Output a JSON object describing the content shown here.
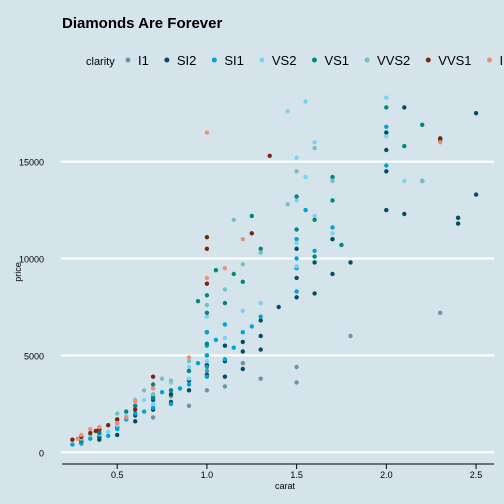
{
  "colors": {
    "background": "#d5e4eb",
    "grid": "#ffffff",
    "text": "#000000",
    "series": {
      "I1": "#6794a7",
      "SI2": "#014d64",
      "SI1": "#01a2d9",
      "VS2": "#7ad2f6",
      "VS1": "#00887d",
      "VVS2": "#76c0c1",
      "VVS1": "#7c260b",
      "IF": "#ee8f71"
    }
  },
  "chart_data": {
    "type": "scatter",
    "title": "Diamonds Are Forever",
    "xlabel": "carat",
    "ylabel": "price",
    "legend_title": "clarity",
    "legend_position": "top",
    "xlim": [
      0.17,
      2.6
    ],
    "ylim": [
      -500,
      18800
    ],
    "x_ticks": [
      0.5,
      1.0,
      1.5,
      2.0,
      2.5
    ],
    "x_tick_labels": [
      "0.5",
      "1.0",
      "1.5",
      "2.0",
      "2.5"
    ],
    "y_ticks": [
      0,
      5000,
      10000,
      15000
    ],
    "y_tick_labels": [
      "0",
      "5000",
      "10000",
      "15000"
    ],
    "grid": "horizontal",
    "series": [
      {
        "name": "I1",
        "points": [
          [
            0.7,
            1800
          ],
          [
            1.0,
            3200
          ],
          [
            1.0,
            4200
          ],
          [
            1.2,
            4600
          ],
          [
            1.5,
            3600
          ],
          [
            1.8,
            6000
          ],
          [
            2.3,
            7200
          ],
          [
            0.9,
            2400
          ],
          [
            1.1,
            3400
          ],
          [
            1.5,
            4400
          ],
          [
            0.8,
            2900
          ],
          [
            1.3,
            3800
          ]
        ]
      },
      {
        "name": "SI2",
        "points": [
          [
            0.3,
            500
          ],
          [
            0.4,
            800
          ],
          [
            0.5,
            1300
          ],
          [
            0.6,
            1600
          ],
          [
            0.7,
            2200
          ],
          [
            0.7,
            2700
          ],
          [
            0.8,
            3000
          ],
          [
            0.9,
            3200
          ],
          [
            0.9,
            3700
          ],
          [
            1.0,
            4000
          ],
          [
            1.0,
            4500
          ],
          [
            1.0,
            5000
          ],
          [
            1.1,
            3900
          ],
          [
            1.1,
            4700
          ],
          [
            1.2,
            5200
          ],
          [
            1.2,
            5700
          ],
          [
            1.3,
            6000
          ],
          [
            1.3,
            6800
          ],
          [
            1.5,
            8000
          ],
          [
            1.5,
            9000
          ],
          [
            1.5,
            10500
          ],
          [
            1.6,
            9800
          ],
          [
            1.7,
            11000
          ],
          [
            1.8,
            9800
          ],
          [
            2.0,
            12500
          ],
          [
            2.0,
            14500
          ],
          [
            2.0,
            16500
          ],
          [
            2.1,
            17800
          ],
          [
            2.2,
            14000
          ],
          [
            2.3,
            16200
          ],
          [
            2.4,
            11800
          ],
          [
            2.5,
            13300
          ],
          [
            2.5,
            17500
          ],
          [
            0.6,
            1900
          ],
          [
            0.8,
            2600
          ],
          [
            0.5,
            900
          ],
          [
            1.0,
            6200
          ],
          [
            1.2,
            4300
          ],
          [
            1.4,
            7500
          ],
          [
            1.6,
            8200
          ],
          [
            2.1,
            12300
          ],
          [
            2.4,
            12100
          ],
          [
            2.3,
            16100
          ],
          [
            0.4,
            650
          ],
          [
            1.1,
            5500
          ],
          [
            1.3,
            5300
          ],
          [
            1.7,
            9200
          ],
          [
            2.0,
            15600
          ]
        ]
      },
      {
        "name": "SI1",
        "points": [
          [
            0.3,
            600
          ],
          [
            0.35,
            700
          ],
          [
            0.4,
            900
          ],
          [
            0.4,
            1100
          ],
          [
            0.5,
            1200
          ],
          [
            0.5,
            1500
          ],
          [
            0.55,
            1700
          ],
          [
            0.6,
            2000
          ],
          [
            0.7,
            2300
          ],
          [
            0.7,
            2900
          ],
          [
            0.75,
            3100
          ],
          [
            0.8,
            2500
          ],
          [
            0.9,
            3500
          ],
          [
            0.9,
            4200
          ],
          [
            1.0,
            4400
          ],
          [
            1.0,
            5000
          ],
          [
            1.0,
            5500
          ],
          [
            1.0,
            6200
          ],
          [
            1.05,
            5800
          ],
          [
            1.1,
            4800
          ],
          [
            1.1,
            6600
          ],
          [
            1.2,
            6200
          ],
          [
            1.3,
            7000
          ],
          [
            1.5,
            9500
          ],
          [
            1.5,
            11000
          ],
          [
            1.5,
            8300
          ],
          [
            1.6,
            10400
          ],
          [
            1.7,
            11600
          ],
          [
            2.0,
            14800
          ],
          [
            2.0,
            16800
          ],
          [
            2.2,
            14000
          ],
          [
            0.45,
            850
          ],
          [
            0.65,
            2100
          ],
          [
            0.85,
            3300
          ],
          [
            1.15,
            5400
          ],
          [
            1.25,
            6500
          ],
          [
            0.3,
            450
          ],
          [
            0.25,
            400
          ],
          [
            0.95,
            4600
          ],
          [
            1.0,
            3900
          ],
          [
            1.5,
            10000
          ],
          [
            1.55,
            12500
          ]
        ]
      },
      {
        "name": "VS2",
        "points": [
          [
            0.3,
            650
          ],
          [
            0.4,
            950
          ],
          [
            0.5,
            1400
          ],
          [
            0.55,
            1900
          ],
          [
            0.6,
            2300
          ],
          [
            0.7,
            2500
          ],
          [
            0.7,
            3300
          ],
          [
            0.8,
            3600
          ],
          [
            0.9,
            3800
          ],
          [
            1.0,
            4700
          ],
          [
            1.0,
            5600
          ],
          [
            1.0,
            7000
          ],
          [
            1.1,
            5900
          ],
          [
            1.2,
            7300
          ],
          [
            1.5,
            9600
          ],
          [
            1.5,
            10800
          ],
          [
            1.5,
            13000
          ],
          [
            1.5,
            15200
          ],
          [
            1.55,
            14200
          ],
          [
            1.6,
            16000
          ],
          [
            1.7,
            13000
          ],
          [
            1.7,
            11300
          ],
          [
            2.0,
            18300
          ],
          [
            2.1,
            14000
          ],
          [
            2.0,
            16300
          ],
          [
            1.45,
            17600
          ],
          [
            1.55,
            18100
          ],
          [
            0.9,
            4400
          ],
          [
            1.3,
            7700
          ],
          [
            0.45,
            1050
          ],
          [
            0.65,
            2700
          ],
          [
            1.6,
            12200
          ]
        ]
      },
      {
        "name": "VS1",
        "points": [
          [
            0.3,
            600
          ],
          [
            0.4,
            1000
          ],
          [
            0.5,
            1700
          ],
          [
            0.6,
            2400
          ],
          [
            0.7,
            2800
          ],
          [
            0.7,
            3500
          ],
          [
            0.8,
            3200
          ],
          [
            0.9,
            4200
          ],
          [
            1.0,
            5600
          ],
          [
            1.0,
            7200
          ],
          [
            1.0,
            8100
          ],
          [
            1.1,
            7700
          ],
          [
            1.15,
            9200
          ],
          [
            1.2,
            8800
          ],
          [
            1.3,
            10500
          ],
          [
            1.5,
            11500
          ],
          [
            1.5,
            13200
          ],
          [
            1.6,
            12000
          ],
          [
            1.7,
            13000
          ],
          [
            1.7,
            14200
          ],
          [
            2.0,
            17800
          ],
          [
            2.1,
            15800
          ],
          [
            2.2,
            16900
          ],
          [
            1.25,
            12200
          ],
          [
            0.95,
            7800
          ],
          [
            1.05,
            9400
          ],
          [
            0.55,
            2100
          ],
          [
            1.75,
            10700
          ],
          [
            1.6,
            10100
          ]
        ]
      },
      {
        "name": "VVS2",
        "points": [
          [
            0.3,
            700
          ],
          [
            0.4,
            1200
          ],
          [
            0.5,
            2000
          ],
          [
            0.6,
            2700
          ],
          [
            0.7,
            3000
          ],
          [
            0.8,
            3700
          ],
          [
            0.9,
            4700
          ],
          [
            1.0,
            7600
          ],
          [
            1.1,
            8400
          ],
          [
            1.2,
            9700
          ],
          [
            1.3,
            10300
          ],
          [
            1.45,
            12800
          ],
          [
            1.5,
            14500
          ],
          [
            1.6,
            15700
          ],
          [
            1.7,
            14000
          ],
          [
            2.2,
            14000
          ],
          [
            1.15,
            12000
          ],
          [
            0.35,
            900
          ],
          [
            0.65,
            3200
          ],
          [
            0.75,
            3800
          ]
        ]
      },
      {
        "name": "VVS1",
        "points": [
          [
            0.3,
            800
          ],
          [
            0.35,
            1000
          ],
          [
            0.4,
            1200
          ],
          [
            0.45,
            1400
          ],
          [
            0.5,
            1700
          ],
          [
            0.6,
            2200
          ],
          [
            0.7,
            3900
          ],
          [
            1.0,
            8700
          ],
          [
            1.0,
            10500
          ],
          [
            1.0,
            11100
          ],
          [
            1.25,
            11300
          ],
          [
            1.35,
            15300
          ],
          [
            2.3,
            16200
          ],
          [
            0.25,
            650
          ],
          [
            0.38,
            1100
          ]
        ]
      },
      {
        "name": "IF",
        "points": [
          [
            0.3,
            900
          ],
          [
            0.35,
            1200
          ],
          [
            0.4,
            1300
          ],
          [
            0.5,
            1500
          ],
          [
            0.55,
            1800
          ],
          [
            0.6,
            2600
          ],
          [
            0.7,
            3300
          ],
          [
            0.9,
            4900
          ],
          [
            1.0,
            9000
          ],
          [
            1.1,
            9500
          ],
          [
            1.2,
            11000
          ],
          [
            1.0,
            16500
          ],
          [
            2.3,
            16000
          ],
          [
            0.28,
            700
          ]
        ]
      }
    ]
  }
}
